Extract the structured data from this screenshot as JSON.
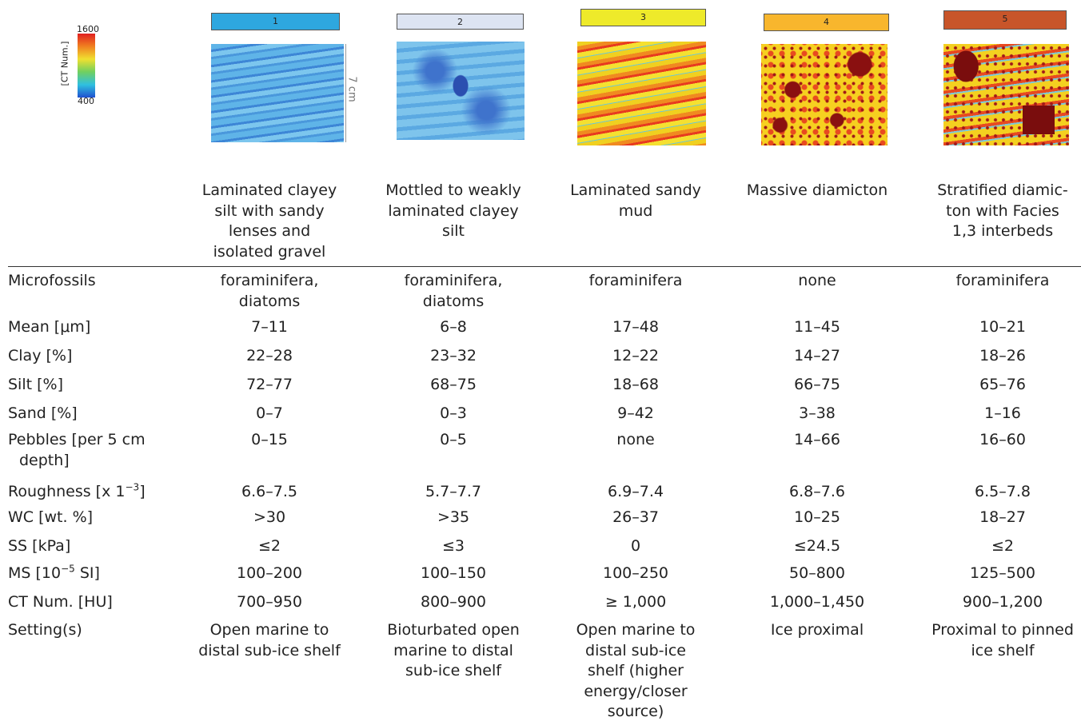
{
  "legend": {
    "label": "[CT Num.]",
    "max": "1600",
    "min": "400"
  },
  "scale": "7 cm",
  "facies": [
    {
      "number": "1",
      "color": "#2ea7df",
      "description": "Laminated clayey\nsilt with sandy\nlenses and\nisolated gravel"
    },
    {
      "number": "2",
      "color": "#dde4f2",
      "description": "Mottled to weakly\nlaminated clayey\nsilt"
    },
    {
      "number": "3",
      "color": "#eeea2a",
      "description": "Laminated sandy\nmud"
    },
    {
      "number": "4",
      "color": "#f8b62d",
      "description": "Massive diamicton"
    },
    {
      "number": "5",
      "color": "#c8552a",
      "description": "Stratified diamic-\nton with Facies\n1,3 interbeds"
    }
  ],
  "table": {
    "rows": [
      {
        "label": {
          "text": "Microfossils"
        },
        "cells": [
          "foraminifera,\ndiatoms",
          "foraminifera,\ndiatoms",
          "foraminifera",
          "none",
          "foraminifera"
        ]
      },
      {
        "label": {
          "text": "Mean [μm]"
        },
        "cells": [
          "7–11",
          "6–8",
          "17–48",
          "11–45",
          "10–21"
        ]
      },
      {
        "label": {
          "text": "Clay [%]"
        },
        "cells": [
          "22–28",
          "23–32",
          "12–22",
          "14–27",
          "18–26"
        ]
      },
      {
        "label": {
          "text": "Silt [%]"
        },
        "cells": [
          "72–77",
          "68–75",
          "18–68",
          "66–75",
          "65–76"
        ]
      },
      {
        "label": {
          "text": "Sand [%]"
        },
        "cells": [
          "0–7",
          "0–3",
          "9–42",
          "3–38",
          "1–16"
        ]
      },
      {
        "label": {
          "text": "Pebbles [per 5 cm\ndepth]"
        },
        "cells": [
          "0–15",
          "0–5",
          "none",
          "14–66",
          "16–60"
        ]
      },
      {
        "label": {
          "text": "Roughness [x 1",
          "sup": "−3",
          "end": "]"
        },
        "cells": [
          "6.6–7.5",
          "5.7–7.7",
          "6.9–7.4",
          "6.8–7.6",
          "6.5–7.8"
        ]
      },
      {
        "label": {
          "text": "WC [wt. %]"
        },
        "cells": [
          ">30",
          ">35",
          "26–37",
          "10–25",
          "18–27"
        ]
      },
      {
        "label": {
          "text": "SS [kPa]"
        },
        "cells": [
          "≤2",
          "≤3",
          "0",
          "≤24.5",
          "≤2"
        ]
      },
      {
        "label": {
          "text": "MS [10",
          "sup": "−5",
          "end": " SI]"
        },
        "cells": [
          "100–200",
          "100–150",
          "100–250",
          "50–800",
          "125–500"
        ]
      },
      {
        "label": {
          "text": "CT Num. [HU]"
        },
        "cells": [
          "700–950",
          "800–900",
          "≥ 1,000",
          "1,000–1,450",
          "900–1,200"
        ]
      },
      {
        "label": {
          "text": "Setting(s)"
        },
        "cells": [
          "Open marine to\ndistal sub-ice shelf",
          "Bioturbated open\nmarine to distal\nsub-ice shelf",
          "Open marine to\ndistal sub-ice\nshelf (higher\nenergy/closer\nsource)",
          "Ice proximal",
          "Proximal to pinned\nice shelf"
        ]
      }
    ]
  }
}
